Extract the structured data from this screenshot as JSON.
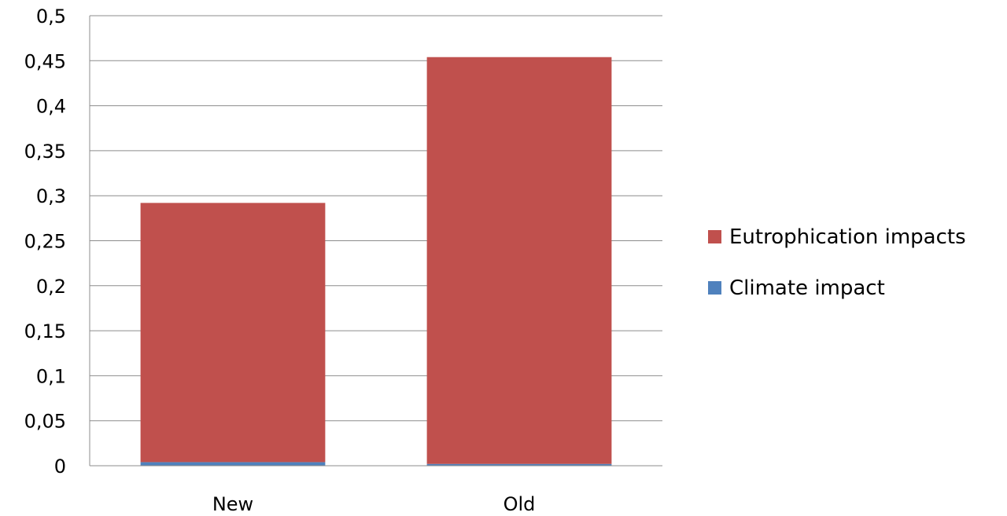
{
  "chart_data": {
    "type": "bar",
    "stacked": true,
    "categories": [
      "New",
      "Old"
    ],
    "series": [
      {
        "name": "Climate impact",
        "color": "#4F81BD",
        "values": [
          0.004,
          0.002
        ]
      },
      {
        "name": "Eutrophication impacts",
        "color": "#C0504D",
        "values": [
          0.288,
          0.452
        ]
      }
    ],
    "ylim": [
      0,
      0.5
    ],
    "yticks": [
      "0",
      "0,05",
      "0,1",
      "0,15",
      "0,2",
      "0,25",
      "0,3",
      "0,35",
      "0,4",
      "0,45",
      "0,5"
    ],
    "grid": true,
    "legend_position": "right",
    "legend_order": [
      "Eutrophication impacts",
      "Climate impact"
    ]
  }
}
